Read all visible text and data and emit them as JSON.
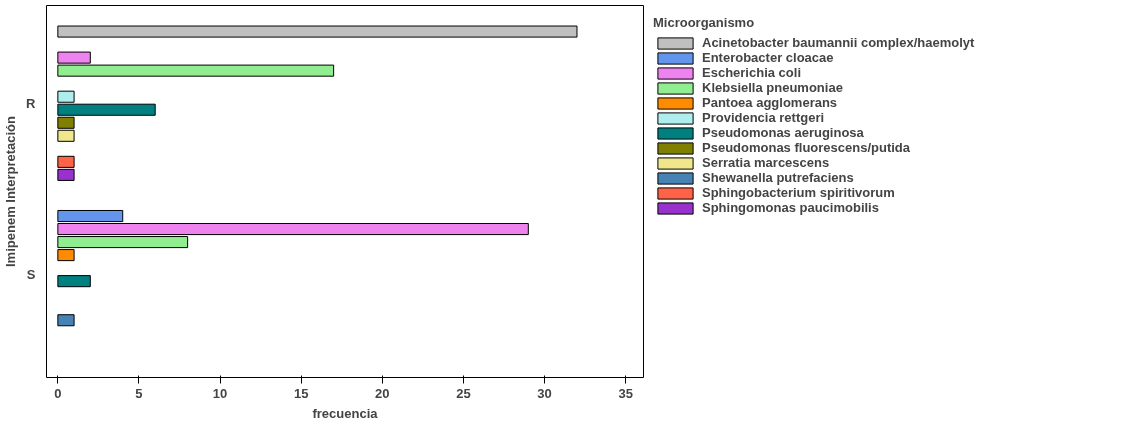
{
  "chart_data": {
    "type": "bar",
    "orientation": "horizontal",
    "xlabel": "frecuencia",
    "ylabel": "Imipenem Interpretación",
    "legend_title": "Microorganismo",
    "legend": "right",
    "grid": false,
    "categories": [
      "R",
      "S"
    ],
    "xlim": [
      -0.7,
      36.1
    ],
    "xticks": [
      0,
      5,
      10,
      15,
      20,
      25,
      30,
      35
    ],
    "series": [
      {
        "name": "Acinetobacter baumannii complex/haemolyt",
        "color": "#c0c0c0",
        "values": [
          32,
          null
        ]
      },
      {
        "name": "Enterobacter cloacae",
        "color": "#6495ed",
        "values": [
          null,
          4
        ]
      },
      {
        "name": "Escherichia coli",
        "color": "#ee82ee",
        "values": [
          2,
          29
        ]
      },
      {
        "name": "Klebsiella pneumoniae",
        "color": "#90ee90",
        "values": [
          17,
          8
        ]
      },
      {
        "name": "Pantoea agglomerans",
        "color": "#ff8c00",
        "values": [
          null,
          1
        ]
      },
      {
        "name": "Providencia rettgeri",
        "color": "#afeeee",
        "values": [
          1,
          null
        ]
      },
      {
        "name": "Pseudomonas aeruginosa",
        "color": "#008080",
        "values": [
          6,
          2
        ]
      },
      {
        "name": "Pseudomonas fluorescens/putida",
        "color": "#808000",
        "values": [
          1,
          null
        ]
      },
      {
        "name": "Serratia marcescens",
        "color": "#f0e68c",
        "values": [
          1,
          null
        ]
      },
      {
        "name": "Shewanella putrefaciens",
        "color": "#4682b4",
        "values": [
          null,
          1
        ]
      },
      {
        "name": "Sphingobacterium spiritivorum",
        "color": "#ff6347",
        "values": [
          1,
          null
        ]
      },
      {
        "name": "Sphingomonas paucimobilis",
        "color": "#9932cc",
        "values": [
          1,
          null
        ]
      }
    ]
  }
}
